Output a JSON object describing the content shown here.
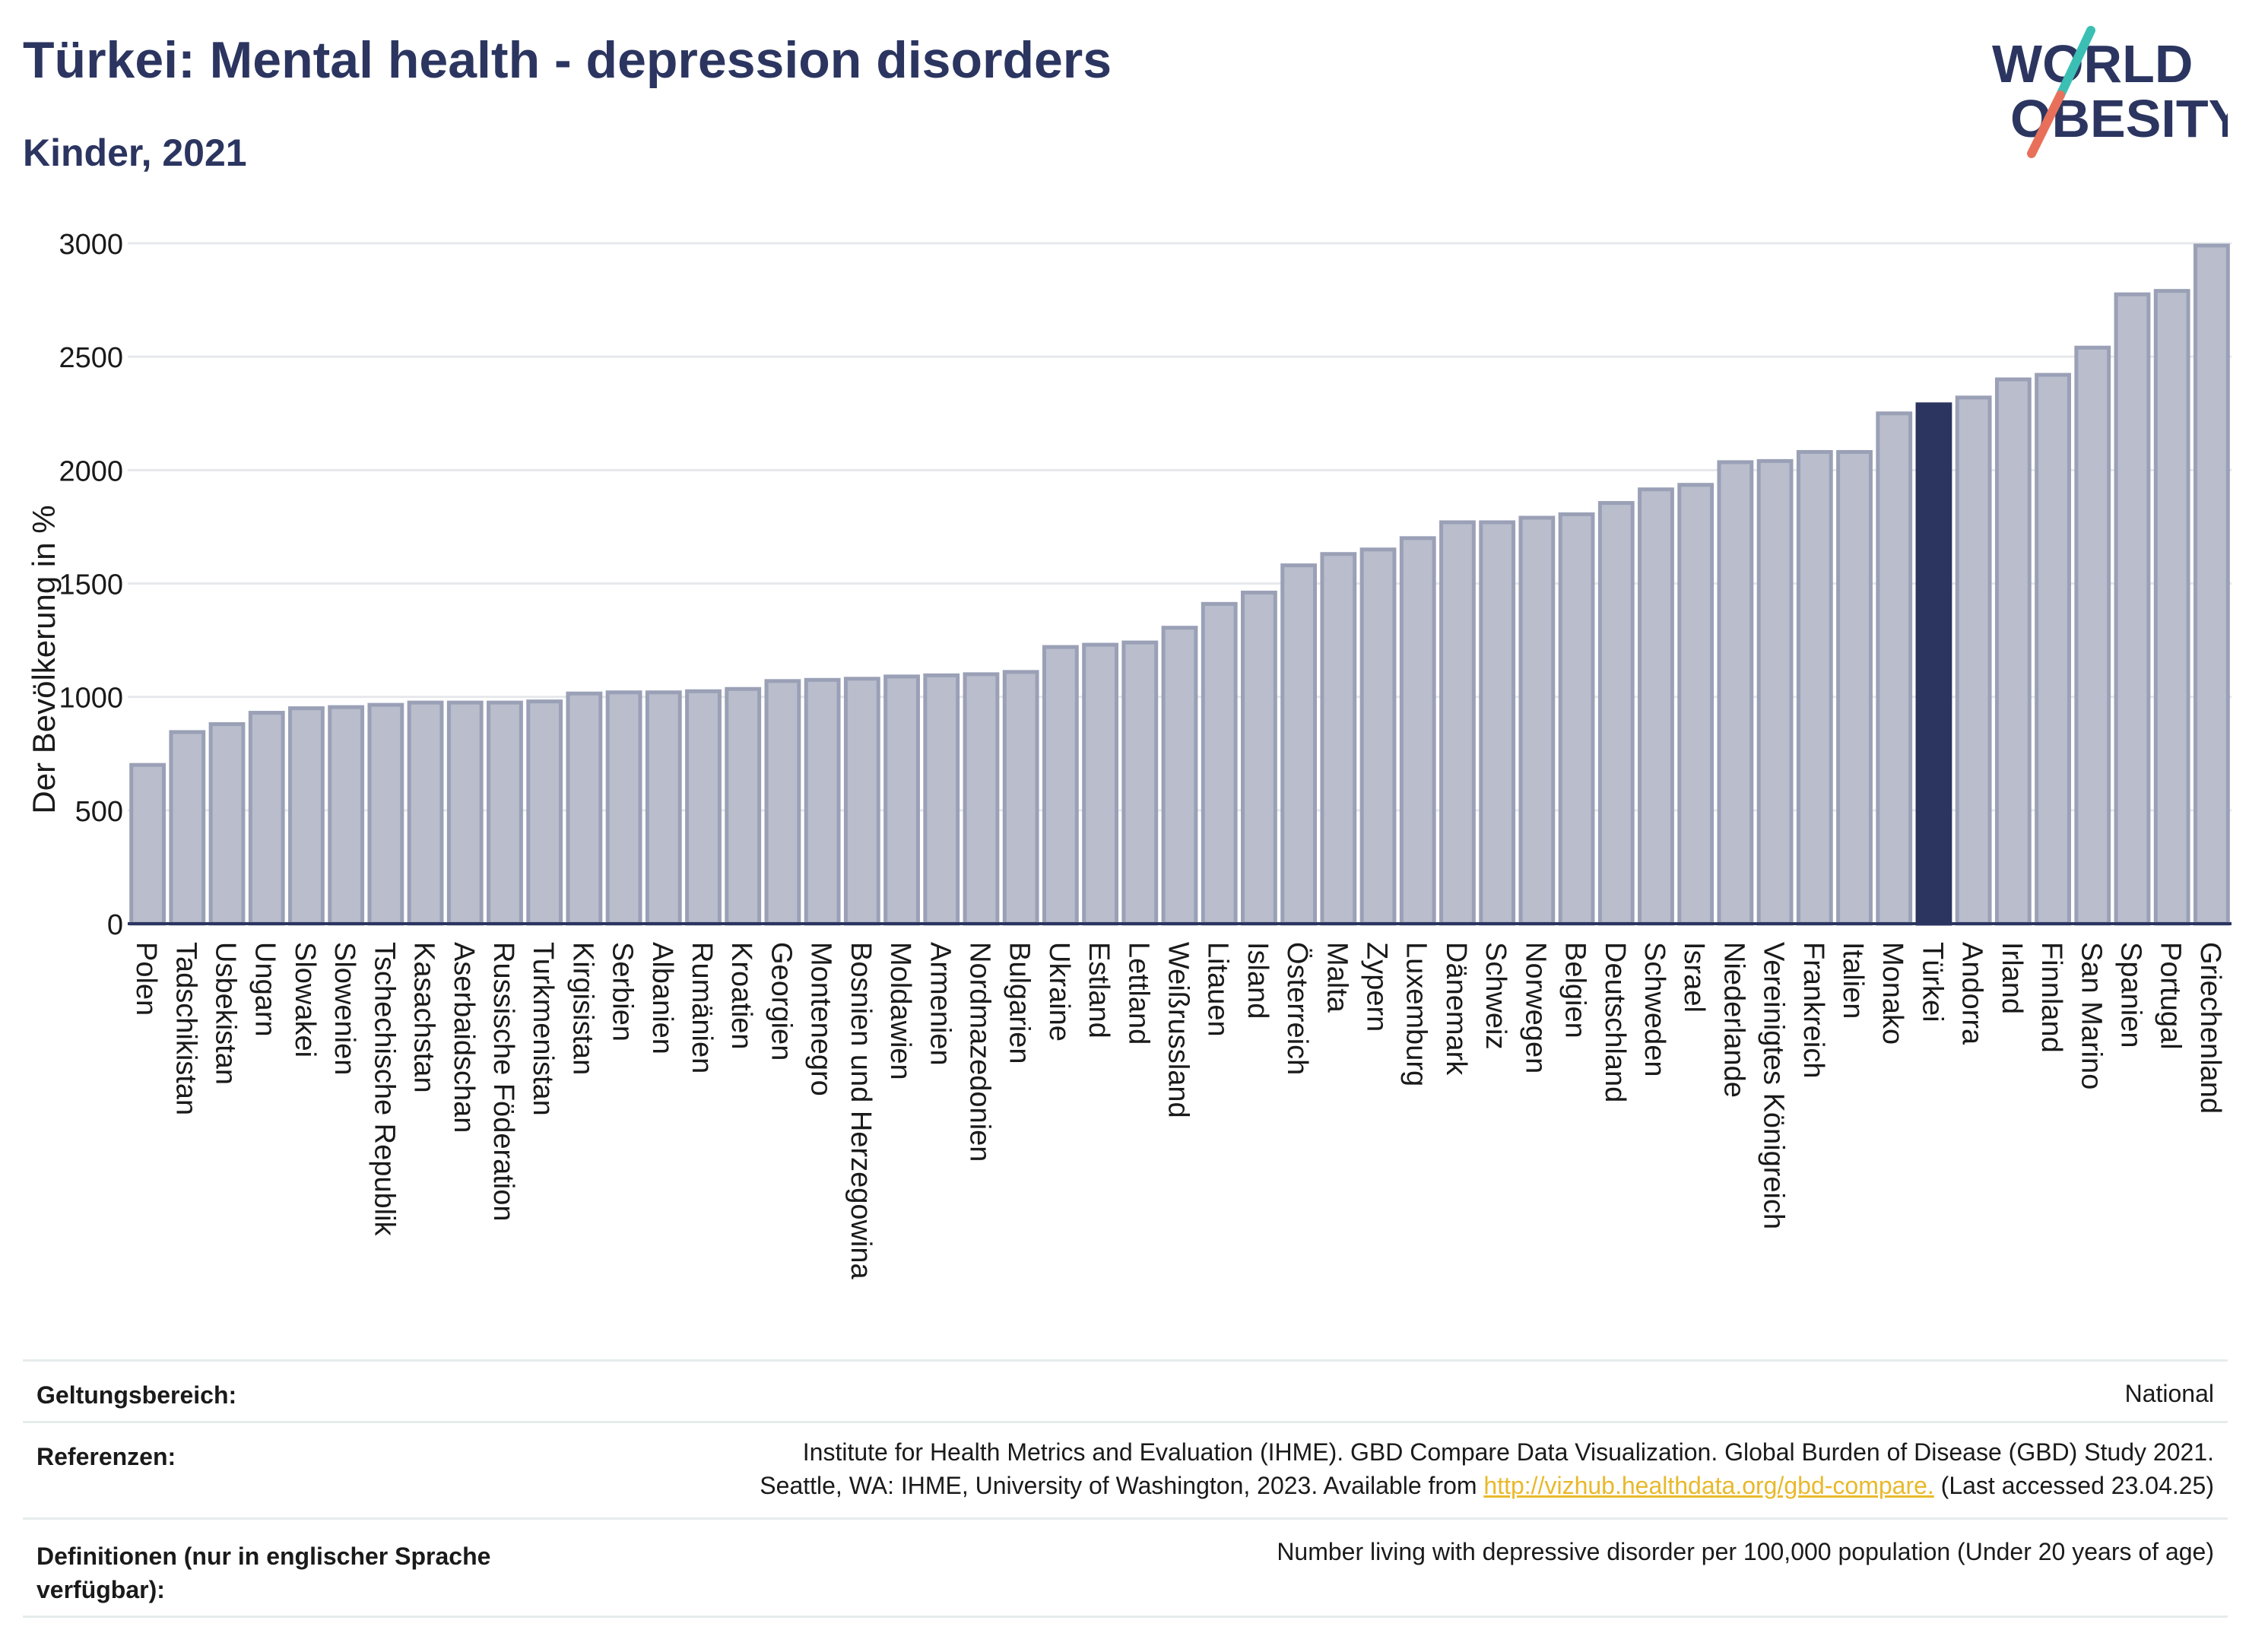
{
  "header": {
    "title": "Türkei: Mental health - depression disorders",
    "subtitle": "Kinder, 2021"
  },
  "logo": {
    "line1": "WORLD",
    "line2": "OBESITY",
    "text_color": "#2b3560",
    "slash_colors": [
      "#3bbfb4",
      "#e8705a"
    ]
  },
  "colors": {
    "bar_default": "#b9bdcc",
    "bar_default_stroke": "#9aa0b6",
    "bar_highlight": "#2b3560",
    "grid": "#e6e8ec",
    "axis": "#2b3560"
  },
  "chart_data": {
    "type": "bar",
    "ylabel": "Der Bevölkerung in %",
    "ylim": [
      0,
      3000
    ],
    "yticks": [
      0,
      500,
      1000,
      1500,
      2000,
      2500,
      3000
    ],
    "grid": true,
    "highlight": "Türkei",
    "categories": [
      "Polen",
      "Tadschikistan",
      "Usbekistan",
      "Ungarn",
      "Slowakei",
      "Slowenien",
      "Tschechische Republik",
      "Kasachstan",
      "Aserbaidschan",
      "Russische Föderation",
      "Turkmenistan",
      "Kirgisistan",
      "Serbien",
      "Albanien",
      "Rumänien",
      "Kroatien",
      "Georgien",
      "Montenegro",
      "Bosnien und Herzegowina",
      "Moldawien",
      "Armenien",
      "Nordmazedonien",
      "Bulgarien",
      "Ukraine",
      "Estland",
      "Lettland",
      "Weißrussland",
      "Litauen",
      "Island",
      "Österreich",
      "Malta",
      "Zypern",
      "Luxemburg",
      "Dänemark",
      "Schweiz",
      "Norwegen",
      "Belgien",
      "Deutschland",
      "Schweden",
      "Israel",
      "Niederlande",
      "Vereinigtes Königreich",
      "Frankreich",
      "Italien",
      "Monako",
      "Türkei",
      "Andorra",
      "Irland",
      "Finnland",
      "San Marino",
      "Spanien",
      "Portugal",
      "Griechenland"
    ],
    "values": [
      700,
      845,
      880,
      930,
      950,
      955,
      965,
      975,
      975,
      975,
      980,
      1015,
      1020,
      1020,
      1025,
      1035,
      1070,
      1075,
      1080,
      1090,
      1095,
      1100,
      1110,
      1220,
      1230,
      1240,
      1305,
      1410,
      1460,
      1580,
      1630,
      1650,
      1700,
      1770,
      1770,
      1790,
      1805,
      1855,
      1915,
      1935,
      2035,
      2040,
      2080,
      2080,
      2250,
      2290,
      2320,
      2400,
      2420,
      2540,
      2775,
      2790,
      2990
    ]
  },
  "meta": {
    "scope_label": "Geltungsbereich:",
    "scope_value": "National",
    "references_label": "Referenzen:",
    "references_line1": "Institute for Health Metrics and Evaluation (IHME). GBD Compare Data Visualization. Global Burden of Disease (GBD) Study 2021.",
    "references_line2_pre": "Seattle, WA: IHME, University of Washington, 2023. Available from ",
    "references_link": "http://vizhub.healthdata.org/gbd-compare.",
    "references_line2_post": " (Last accessed 23.04.25)",
    "definitions_label": "Definitionen (nur in englischer Sprache verfügbar):",
    "definitions_value": "Number living with depressive disorder per 100,000 population (Under 20 years of age)"
  }
}
